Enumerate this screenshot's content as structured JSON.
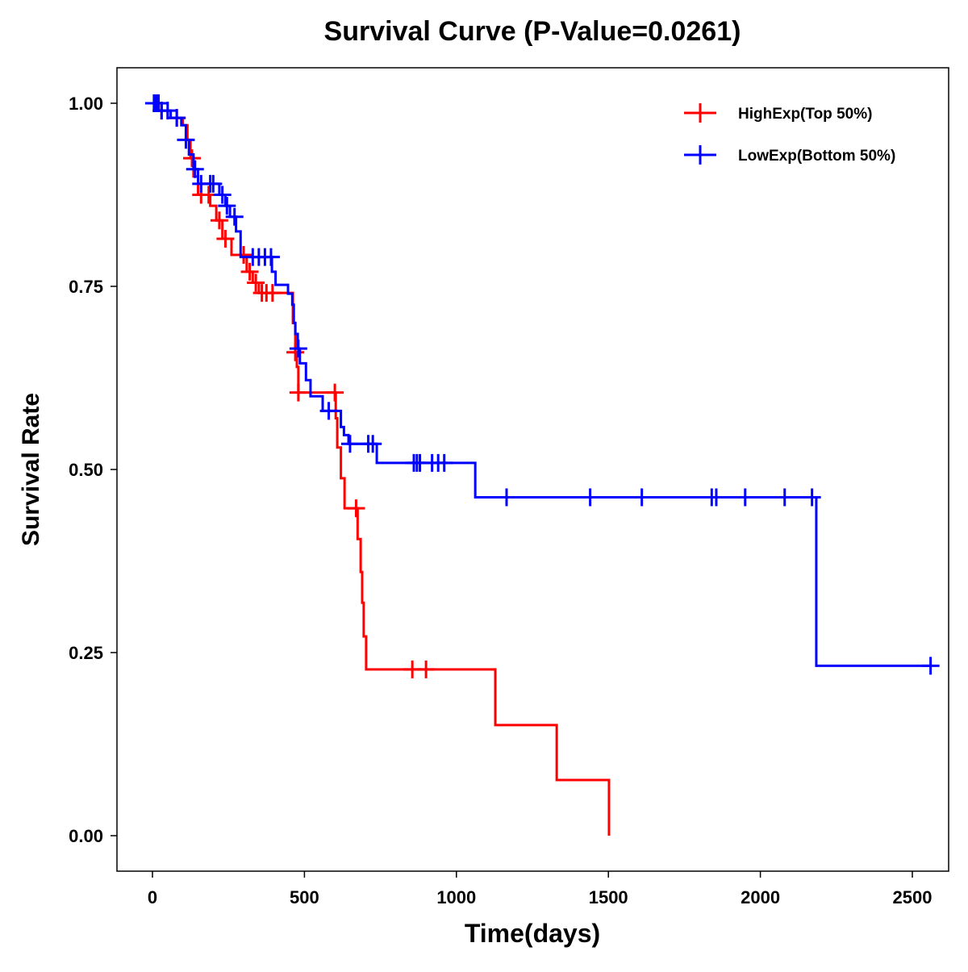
{
  "chart_data": {
    "type": "line",
    "subtype": "kaplan-meier step",
    "title": "Survival Curve (P-Value=0.0261)",
    "xlabel": "Time(days)",
    "ylabel": "Survival Rate",
    "xlim": [
      -115,
      2615
    ],
    "ylim": [
      -0.05,
      1.05
    ],
    "xticks": [
      0,
      500,
      1000,
      1500,
      2000,
      2500
    ],
    "xtick_labels": [
      "0",
      "500",
      "1000",
      "1500",
      "2000",
      "2500"
    ],
    "yticks": [
      0,
      0.25,
      0.5,
      0.75,
      1.0
    ],
    "ytick_labels": [
      "0.00",
      "0.25",
      "0.50",
      "0.75",
      "1.00"
    ],
    "grid": false,
    "legend_position": "top-right",
    "series": [
      {
        "name": "HighExp(Top 50%)",
        "color": "#ff0000",
        "steps": [
          [
            0,
            1.0
          ],
          [
            10,
            0.99
          ],
          [
            50,
            0.98
          ],
          [
            100,
            0.97
          ],
          [
            115,
            0.95
          ],
          [
            125,
            0.925
          ],
          [
            135,
            0.9
          ],
          [
            150,
            0.875
          ],
          [
            190,
            0.86
          ],
          [
            210,
            0.84
          ],
          [
            230,
            0.815
          ],
          [
            260,
            0.793
          ],
          [
            310,
            0.77
          ],
          [
            330,
            0.755
          ],
          [
            350,
            0.741
          ],
          [
            462,
            0.7
          ],
          [
            470,
            0.66
          ],
          [
            475,
            0.64
          ],
          [
            480,
            0.605
          ],
          [
            603,
            0.57
          ],
          [
            608,
            0.53
          ],
          [
            620,
            0.488
          ],
          [
            632,
            0.447
          ],
          [
            675,
            0.405
          ],
          [
            685,
            0.36
          ],
          [
            690,
            0.318
          ],
          [
            695,
            0.272
          ],
          [
            703,
            0.227
          ],
          [
            1128,
            0.151
          ],
          [
            1330,
            0.076
          ],
          [
            1502,
            0.0
          ]
        ],
        "end_time": 1502,
        "censored": [
          30,
          80,
          130,
          160,
          185,
          220,
          240,
          300,
          320,
          340,
          360,
          375,
          395,
          470,
          480,
          600,
          670,
          855,
          900
        ]
      },
      {
        "name": "LowExp(Bottom 50%)",
        "color": "#0000ff",
        "steps": [
          [
            0,
            1.0
          ],
          [
            30,
            0.99
          ],
          [
            60,
            0.98
          ],
          [
            95,
            0.97
          ],
          [
            110,
            0.95
          ],
          [
            120,
            0.93
          ],
          [
            135,
            0.91
          ],
          [
            150,
            0.89
          ],
          [
            220,
            0.875
          ],
          [
            240,
            0.86
          ],
          [
            255,
            0.845
          ],
          [
            275,
            0.825
          ],
          [
            290,
            0.79
          ],
          [
            393,
            0.77
          ],
          [
            405,
            0.752
          ],
          [
            446,
            0.74
          ],
          [
            460,
            0.725
          ],
          [
            465,
            0.7
          ],
          [
            470,
            0.685
          ],
          [
            478,
            0.665
          ],
          [
            485,
            0.645
          ],
          [
            505,
            0.622
          ],
          [
            520,
            0.6
          ],
          [
            560,
            0.58
          ],
          [
            620,
            0.558
          ],
          [
            630,
            0.547
          ],
          [
            645,
            0.535
          ],
          [
            738,
            0.509
          ],
          [
            1062,
            0.462
          ],
          [
            2184,
            0.232
          ]
        ],
        "end_time": 2560,
        "censored": [
          5,
          10,
          15,
          20,
          30,
          50,
          80,
          110,
          140,
          160,
          190,
          200,
          230,
          245,
          270,
          330,
          350,
          370,
          390,
          480,
          580,
          650,
          710,
          725,
          860,
          870,
          880,
          920,
          940,
          960,
          1165,
          1440,
          1610,
          1840,
          1855,
          1950,
          2080,
          2170,
          2560
        ]
      }
    ]
  }
}
